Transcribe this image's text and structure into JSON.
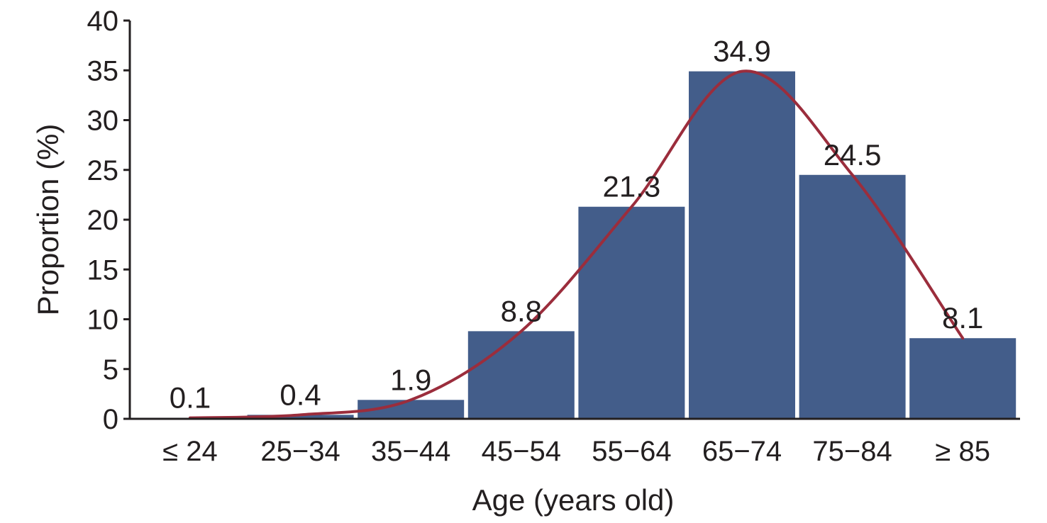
{
  "chart_data": {
    "type": "bar",
    "categories": [
      "≤ 24",
      "25−34",
      "35−44",
      "45−54",
      "55−64",
      "65−74",
      "75−84",
      "≥ 85"
    ],
    "values": [
      0.1,
      0.4,
      1.9,
      8.8,
      21.3,
      34.9,
      24.5,
      8.1
    ],
    "data_labels": [
      "0.1",
      "0.4",
      "1.9",
      "8.8",
      "21.3",
      "34.9",
      "24.5",
      "8.1"
    ],
    "xlabel": "Age (years old)",
    "ylabel": "Proportion (%)",
    "ylim": [
      0,
      40
    ],
    "yticks": [
      0,
      5,
      10,
      15,
      20,
      25,
      30,
      35,
      40
    ],
    "grid": false,
    "legend": "none",
    "trend_line": "smooth curve through bar values",
    "colors": {
      "bar": "#435d8a",
      "curve": "#9b2d3c",
      "axis": "#231f20"
    }
  }
}
